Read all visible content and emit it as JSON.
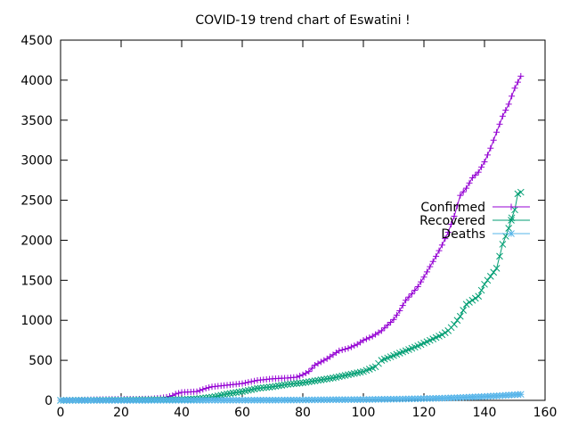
{
  "chart_data": {
    "type": "line",
    "title": "COVID-19 trend chart of Eswatini !",
    "xlabel": "",
    "ylabel": "",
    "xlim": [
      0,
      160
    ],
    "ylim": [
      0,
      4500
    ],
    "xticks": [
      0,
      20,
      40,
      60,
      80,
      100,
      120,
      140,
      160
    ],
    "yticks": [
      0,
      500,
      1000,
      1500,
      2000,
      2500,
      3000,
      3500,
      4000,
      4500
    ],
    "grid": false,
    "legend_position": "right",
    "series": [
      {
        "name": "Confirmed",
        "color": "#9400d3",
        "marker": "plus",
        "points": [
          [
            0,
            1
          ],
          [
            5,
            4
          ],
          [
            10,
            9
          ],
          [
            15,
            12
          ],
          [
            20,
            15
          ],
          [
            25,
            16
          ],
          [
            30,
            20
          ],
          [
            33,
            30
          ],
          [
            35,
            40
          ],
          [
            37,
            60
          ],
          [
            38,
            80
          ],
          [
            40,
            100
          ],
          [
            45,
            110
          ],
          [
            48,
            150
          ],
          [
            50,
            170
          ],
          [
            55,
            190
          ],
          [
            60,
            210
          ],
          [
            65,
            250
          ],
          [
            70,
            270
          ],
          [
            75,
            280
          ],
          [
            78,
            290
          ],
          [
            80,
            320
          ],
          [
            82,
            360
          ],
          [
            84,
            440
          ],
          [
            86,
            480
          ],
          [
            88,
            520
          ],
          [
            90,
            570
          ],
          [
            92,
            620
          ],
          [
            95,
            650
          ],
          [
            98,
            700
          ],
          [
            100,
            750
          ],
          [
            103,
            800
          ],
          [
            106,
            870
          ],
          [
            108,
            940
          ],
          [
            110,
            1010
          ],
          [
            112,
            1120
          ],
          [
            114,
            1250
          ],
          [
            116,
            1330
          ],
          [
            118,
            1420
          ],
          [
            120,
            1540
          ],
          [
            122,
            1670
          ],
          [
            124,
            1800
          ],
          [
            126,
            1940
          ],
          [
            128,
            2100
          ],
          [
            130,
            2300
          ],
          [
            132,
            2560
          ],
          [
            134,
            2650
          ],
          [
            136,
            2780
          ],
          [
            138,
            2850
          ],
          [
            140,
            2980
          ],
          [
            142,
            3150
          ],
          [
            144,
            3350
          ],
          [
            146,
            3550
          ],
          [
            148,
            3700
          ],
          [
            150,
            3900
          ],
          [
            152,
            4050
          ]
        ]
      },
      {
        "name": "Recovered",
        "color": "#009e73",
        "marker": "cross",
        "points": [
          [
            0,
            0
          ],
          [
            10,
            2
          ],
          [
            20,
            5
          ],
          [
            30,
            8
          ],
          [
            40,
            10
          ],
          [
            45,
            20
          ],
          [
            50,
            40
          ],
          [
            55,
            80
          ],
          [
            60,
            110
          ],
          [
            65,
            150
          ],
          [
            70,
            170
          ],
          [
            75,
            200
          ],
          [
            80,
            220
          ],
          [
            85,
            250
          ],
          [
            90,
            280
          ],
          [
            95,
            320
          ],
          [
            100,
            360
          ],
          [
            104,
            420
          ],
          [
            106,
            500
          ],
          [
            110,
            560
          ],
          [
            114,
            620
          ],
          [
            118,
            680
          ],
          [
            122,
            750
          ],
          [
            126,
            820
          ],
          [
            128,
            870
          ],
          [
            130,
            950
          ],
          [
            132,
            1050
          ],
          [
            134,
            1200
          ],
          [
            136,
            1250
          ],
          [
            138,
            1300
          ],
          [
            140,
            1450
          ],
          [
            142,
            1550
          ],
          [
            144,
            1650
          ],
          [
            146,
            1950
          ],
          [
            148,
            2150
          ],
          [
            149,
            2280
          ],
          [
            150,
            2380
          ],
          [
            151,
            2580
          ],
          [
            152,
            2600
          ]
        ]
      },
      {
        "name": "Deaths",
        "color": "#56b4e9",
        "marker": "star",
        "points": [
          [
            0,
            0
          ],
          [
            20,
            0
          ],
          [
            40,
            1
          ],
          [
            50,
            2
          ],
          [
            60,
            2
          ],
          [
            70,
            3
          ],
          [
            80,
            5
          ],
          [
            90,
            8
          ],
          [
            100,
            10
          ],
          [
            110,
            15
          ],
          [
            115,
            18
          ],
          [
            120,
            22
          ],
          [
            125,
            26
          ],
          [
            130,
            32
          ],
          [
            135,
            40
          ],
          [
            140,
            48
          ],
          [
            145,
            58
          ],
          [
            150,
            70
          ],
          [
            152,
            75
          ]
        ]
      }
    ]
  }
}
